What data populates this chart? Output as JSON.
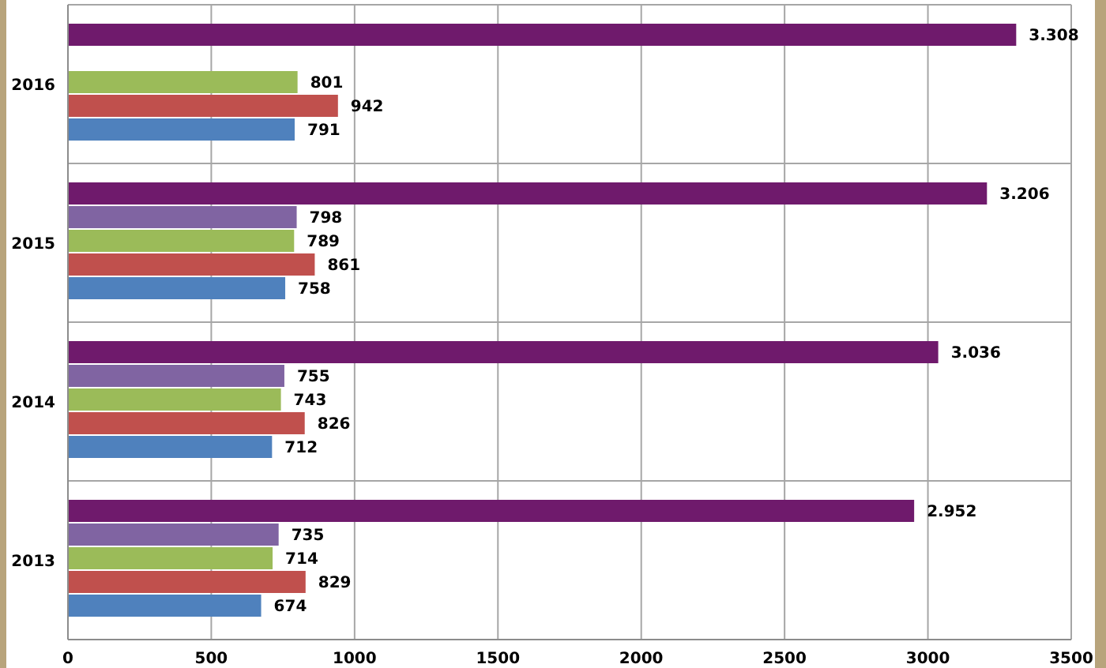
{
  "chart_data": {
    "type": "bar",
    "orientation": "horizontal",
    "categories": [
      "2016",
      "2015",
      "2014",
      "2013"
    ],
    "series": [
      {
        "color": "#6f1a6c",
        "values": [
          3308,
          3206,
          3036,
          2952
        ],
        "value_labels": [
          "3.308",
          "3.206",
          "3.036",
          "2.952"
        ]
      },
      {
        "color": "#8064a2",
        "values": [
          null,
          798,
          755,
          735
        ],
        "value_labels": [
          null,
          "798",
          "755",
          "735"
        ]
      },
      {
        "color": "#9bbb59",
        "values": [
          801,
          789,
          743,
          714
        ],
        "value_labels": [
          "801",
          "789",
          "743",
          "714"
        ]
      },
      {
        "color": "#c0504d",
        "values": [
          942,
          861,
          826,
          829
        ],
        "value_labels": [
          "942",
          "861",
          "826",
          "829"
        ]
      },
      {
        "color": "#4f81bd",
        "values": [
          791,
          758,
          712,
          674
        ],
        "value_labels": [
          "791",
          "758",
          "712",
          "674"
        ]
      }
    ],
    "xlim": [
      0,
      3500
    ],
    "xticks": [
      0,
      500,
      1000,
      1500,
      2000,
      2500,
      3000,
      3500
    ],
    "grid": true
  }
}
